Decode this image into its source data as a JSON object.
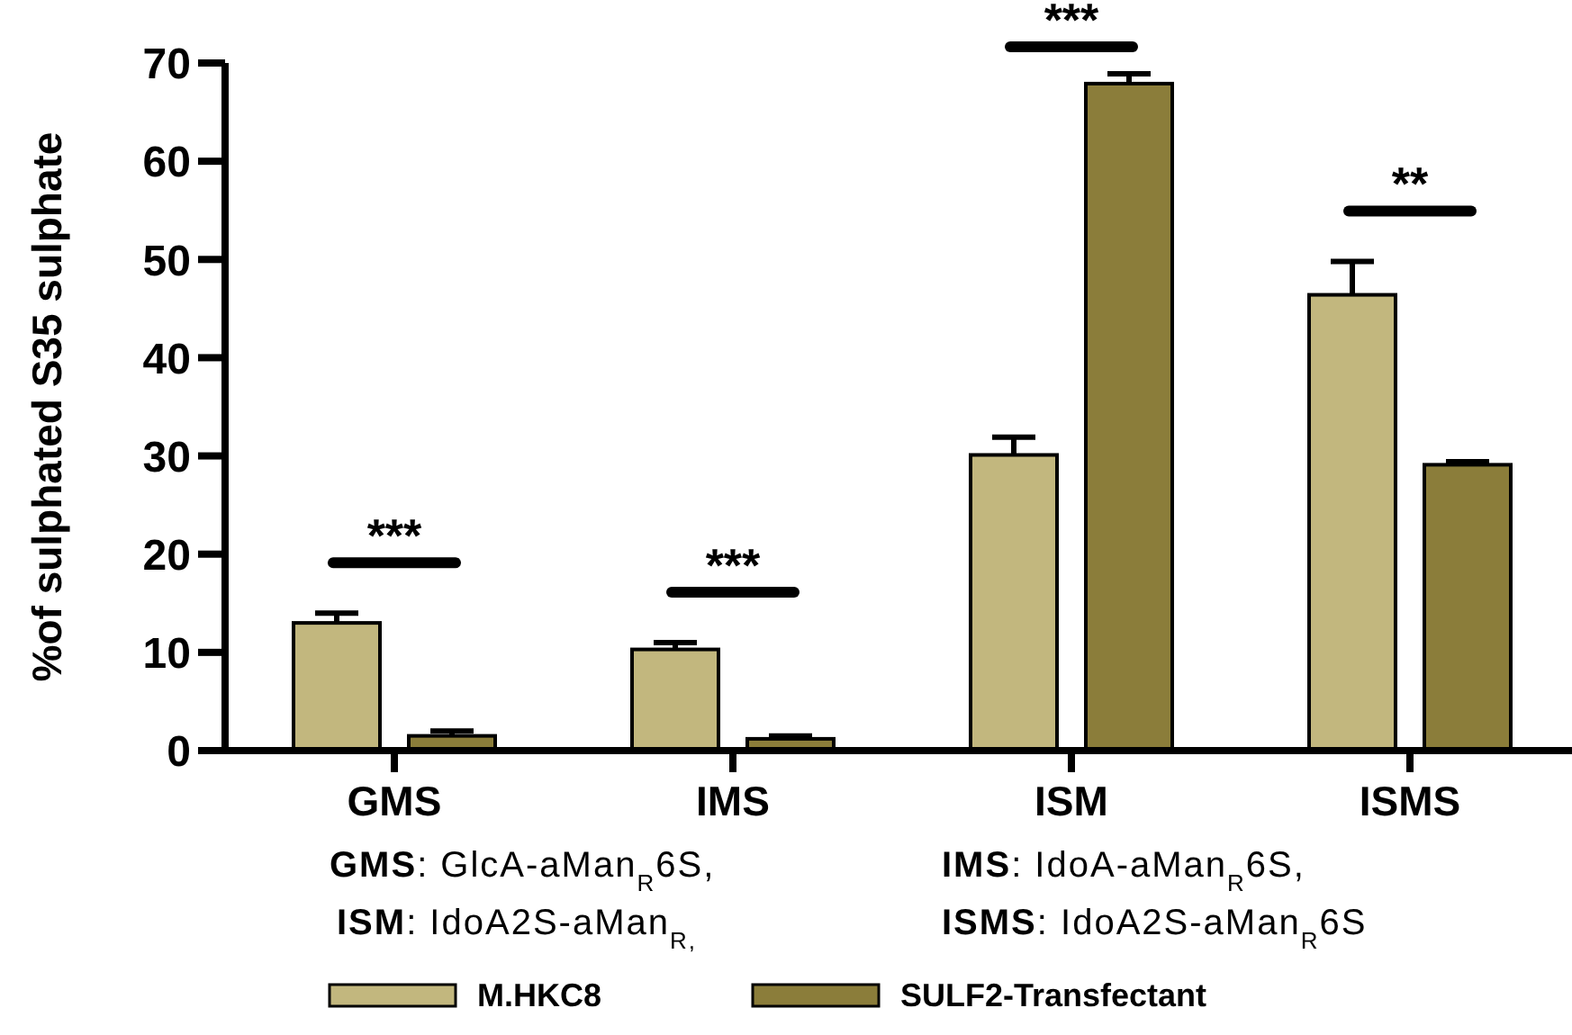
{
  "chart_data": {
    "type": "bar",
    "ylabel": "%of sulphated S35 sulphate",
    "categories": [
      "GMS",
      "IMS",
      "ISM",
      "ISMS"
    ],
    "series": [
      {
        "name": "M.HKC8",
        "color": "#c2b77e",
        "values": [
          13,
          10.3,
          30.1,
          46.4
        ],
        "errors": [
          1,
          0.7,
          1.8,
          3.4
        ]
      },
      {
        "name": "SULF2-Transfectant",
        "color": "#8b7d3a",
        "values": [
          1.5,
          1.2,
          67.9,
          29.1
        ],
        "errors": [
          0.5,
          0.3,
          1,
          0.3
        ]
      }
    ],
    "ylim": [
      0,
      70
    ],
    "yticks": [
      0,
      10,
      20,
      30,
      40,
      50,
      60,
      70
    ],
    "grid": false,
    "legend": "bottom",
    "annotations": [
      "***",
      "***",
      "***",
      "**",
      "GMS: GlcA-aMan$_{R}$6S,",
      "IMS: IdoA-aMan$_{R}$6S,",
      "ISM: IdoA2S-aMan$_{R,}$",
      "ISMS: IdoA2S-aMan$_{R}$6S"
    ]
  }
}
